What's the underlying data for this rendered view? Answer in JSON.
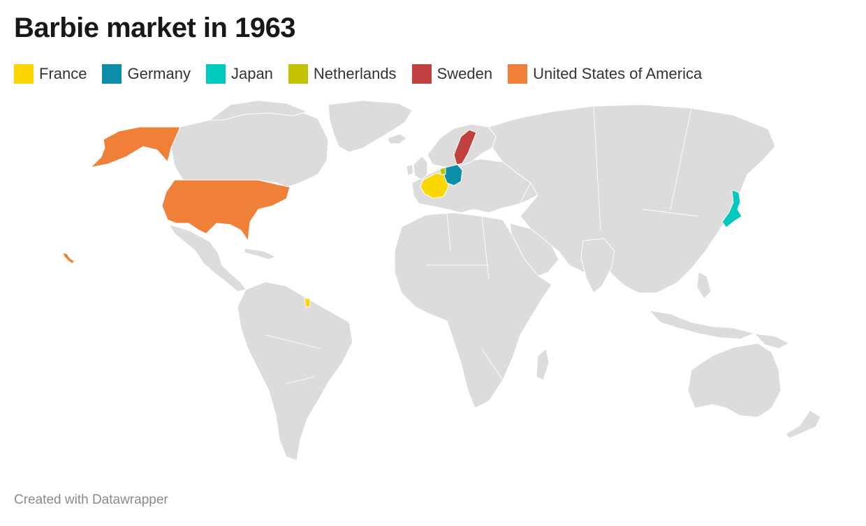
{
  "title": "Barbie market in 1963",
  "legend": [
    {
      "label": "France",
      "color": "#fad700"
    },
    {
      "label": "Germany",
      "color": "#0b8ea8"
    },
    {
      "label": "Japan",
      "color": "#00c9bd"
    },
    {
      "label": "Netherlands",
      "color": "#c3c200"
    },
    {
      "label": "Sweden",
      "color": "#c0413e"
    },
    {
      "label": "United States of America",
      "color": "#f08038"
    }
  ],
  "map": {
    "base_color": "#dcdcdc",
    "highlighted_countries": [
      "France",
      "Germany",
      "Japan",
      "Netherlands",
      "Sweden",
      "United States of America"
    ]
  },
  "footer": "Created with Datawrapper"
}
